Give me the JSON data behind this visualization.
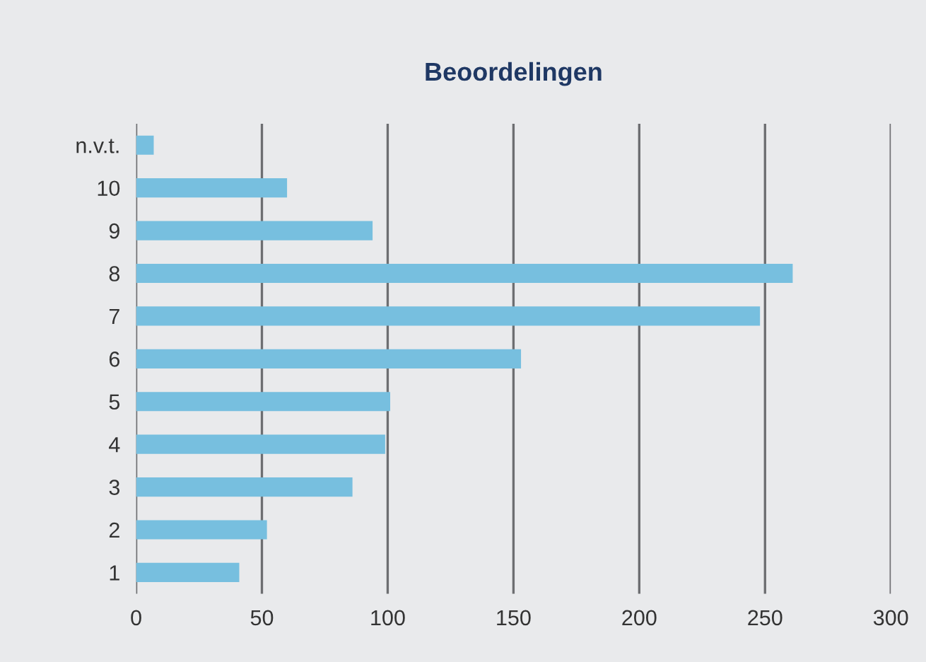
{
  "chart_data": {
    "type": "bar",
    "orientation": "horizontal",
    "title": "Beoordelingen",
    "categories": [
      "n.v.t.",
      "10",
      "9",
      "8",
      "7",
      "6",
      "5",
      "4",
      "3",
      "2",
      "1"
    ],
    "values": [
      7,
      60,
      94,
      261,
      248,
      153,
      101,
      99,
      86,
      52,
      41
    ],
    "color": "#77bfdf",
    "xlim": [
      0,
      300
    ],
    "xticks": [
      0,
      50,
      100,
      150,
      200,
      250,
      300
    ],
    "grid": "x",
    "legend": false
  }
}
